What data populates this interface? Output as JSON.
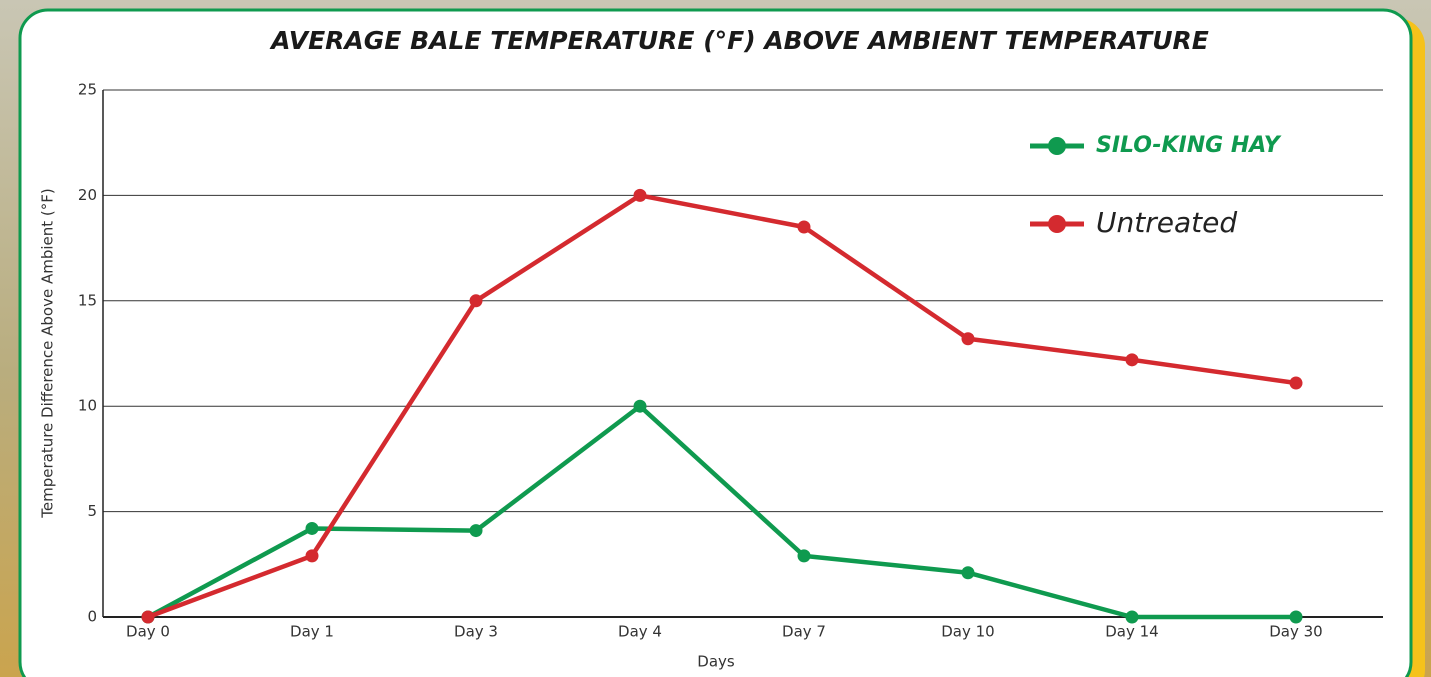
{
  "chart_data": {
    "type": "line",
    "title": "AVERAGE BALE TEMPERATURE (°F) ABOVE AMBIENT TEMPERATURE",
    "x_label": "Days",
    "y_label": "Temperature Difference Above Ambient (°F)",
    "categories": [
      "Day 0",
      "Day 1",
      "Day 3",
      "Day 4",
      "Day 7",
      "Day 10",
      "Day 14",
      "Day 30"
    ],
    "series": [
      {
        "name": "SILO-KING HAY",
        "color": "#0f9a4f",
        "values": [
          0,
          4.2,
          4.1,
          10,
          2.9,
          2.1,
          0,
          0
        ]
      },
      {
        "name": "Untreated",
        "color": "#d42a2f",
        "values": [
          0,
          2.9,
          15,
          20,
          18.5,
          13.2,
          12.2,
          11.1
        ]
      }
    ],
    "ylim": [
      0,
      25
    ],
    "yticks": [
      0,
      5,
      10,
      15,
      20,
      25
    ],
    "grid": true,
    "legend": "top-right"
  }
}
